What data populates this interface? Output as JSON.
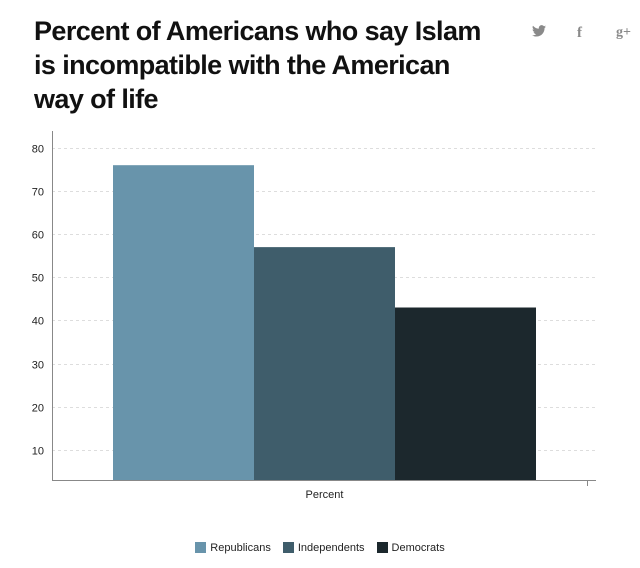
{
  "title": "Percent of Americans who say Islam is incompatible with the American way of life",
  "social": {
    "twitter": "twitter-icon",
    "facebook": "facebook-icon",
    "gplus": "google-plus-icon",
    "twitter_glyph": "🐦",
    "facebook_glyph": "f",
    "gplus_glyph": "g+"
  },
  "chart_data": {
    "type": "bar",
    "title": "Percent of Americans who say Islam is incompatible with the American way of life",
    "categories": [
      "Percent"
    ],
    "series": [
      {
        "name": "Republicans",
        "values": [
          76
        ],
        "color": "#6894ab"
      },
      {
        "name": "Independents",
        "values": [
          57
        ],
        "color": "#3f5d6b"
      },
      {
        "name": "Democrats",
        "values": [
          43
        ],
        "color": "#1c282d"
      }
    ],
    "xlabel": "",
    "ylabel": "",
    "ylim": [
      3,
      83
    ],
    "yticks": [
      10,
      20,
      30,
      40,
      50,
      60,
      70,
      80
    ],
    "grid": true,
    "legend": "bottom-center"
  }
}
